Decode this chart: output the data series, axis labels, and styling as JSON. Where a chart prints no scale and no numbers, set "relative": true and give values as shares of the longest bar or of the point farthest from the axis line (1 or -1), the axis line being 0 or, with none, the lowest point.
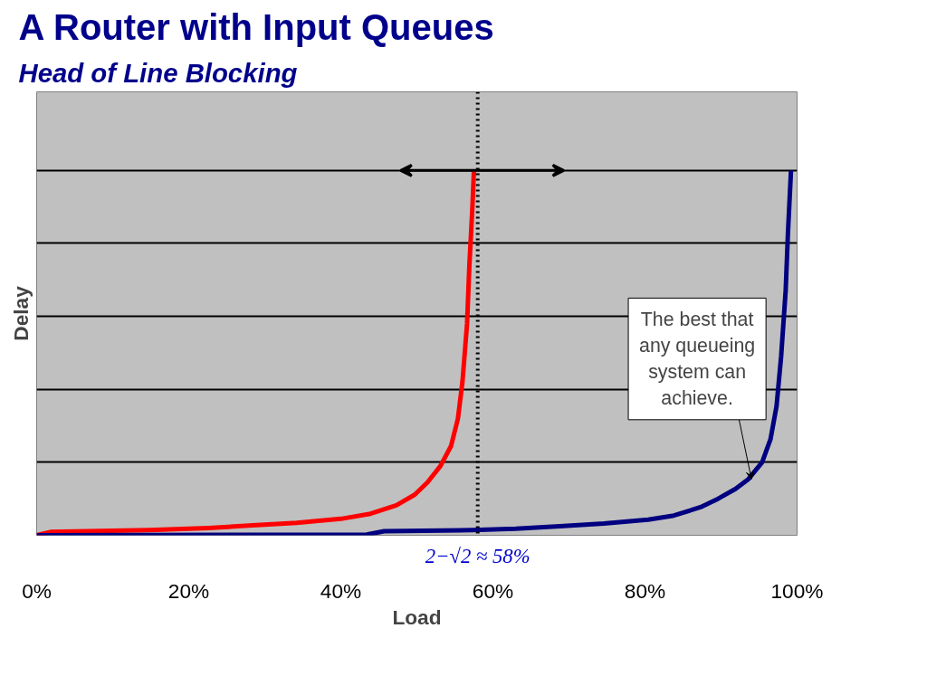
{
  "chart_data": {
    "type": "line",
    "title": "A Router with Input Queues",
    "subtitle": "Head of Line Blocking",
    "xlabel": "Load",
    "ylabel": "Delay",
    "relative": true,
    "xlim": [
      0,
      100
    ],
    "xticks": [
      {
        "value": 0,
        "label": "0%"
      },
      {
        "value": 20,
        "label": "20%"
      },
      {
        "value": 40,
        "label": "40%"
      },
      {
        "value": 60,
        "label": "60%"
      },
      {
        "value": 80,
        "label": "80%"
      },
      {
        "value": 100,
        "label": "100%"
      }
    ],
    "series": [
      {
        "color": "#ff0000",
        "x": [
          0,
          1.8,
          14.8,
          22.6,
          28.4,
          34.2,
          40,
          43.9,
          47.3,
          49.7,
          51.4,
          53.1,
          54.5,
          55.4,
          56.0,
          56.6,
          56.9,
          57.3,
          57.5
        ],
        "values": [
          0,
          0.009,
          0.014,
          0.02,
          0.027,
          0.034,
          0.045,
          0.059,
          0.082,
          0.111,
          0.145,
          0.19,
          0.245,
          0.32,
          0.422,
          0.58,
          0.739,
          0.898,
          1.0
        ]
      },
      {
        "color": "#000080",
        "x": [
          0,
          43.4,
          45.7,
          57.3,
          63.0,
          68.8,
          74.6,
          80.4,
          83.8,
          87.3,
          89.6,
          91.9,
          93.6,
          95.4,
          96.5,
          97.3,
          97.9,
          98.5,
          98.8,
          99.2
        ],
        "values": [
          0,
          0.002,
          0.011,
          0.014,
          0.018,
          0.025,
          0.032,
          0.043,
          0.054,
          0.077,
          0.1,
          0.127,
          0.154,
          0.2,
          0.263,
          0.354,
          0.49,
          0.671,
          0.83,
          1.0
        ]
      }
    ],
    "ref_lines": [
      {
        "axis": "x",
        "value": 58,
        "label": "2−√2 ≈ 58%",
        "color": "#000000",
        "line_style": "dotted"
      }
    ],
    "annotations": [
      {
        "text": "The best that any queueing system can achieve.",
        "x": 94,
        "y": 0.154
      }
    ],
    "grid": "y",
    "marker": "none",
    "line_style": "solid"
  }
}
